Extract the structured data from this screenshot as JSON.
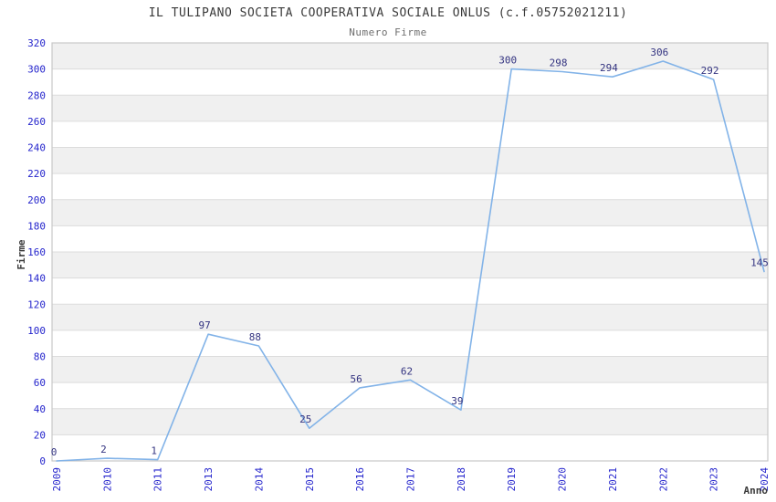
{
  "chart_data": {
    "type": "line",
    "title": "IL TULIPANO SOCIETA COOPERATIVA SOCIALE ONLUS (c.f.05752021211)",
    "subtitle": "Numero Firme",
    "xlabel": "Anno",
    "ylabel": "Firme",
    "categories": [
      "2009",
      "2010",
      "2011",
      "2013",
      "2014",
      "2015",
      "2016",
      "2017",
      "2018",
      "2019",
      "2020",
      "2021",
      "2022",
      "2023",
      "2024"
    ],
    "values": [
      0,
      2,
      1,
      97,
      88,
      25,
      56,
      62,
      39,
      300,
      298,
      294,
      306,
      292,
      145
    ],
    "ylim": [
      0,
      320
    ],
    "ytick_step": 20,
    "grid": "horizontal-bands",
    "legend": "none",
    "colors": {
      "line": "#82b3e8",
      "tick_label": "#2424cc",
      "data_label": "#333380",
      "title": "#3a3a3a",
      "subtitle": "#6e6e6e",
      "axis_label": "#3a3a3a",
      "grid_line": "#dcdcdc",
      "plot_border": "#c8c8c8",
      "band_gray": "#f0f0f0",
      "band_white": "#ffffff",
      "background": "#ffffff"
    }
  }
}
